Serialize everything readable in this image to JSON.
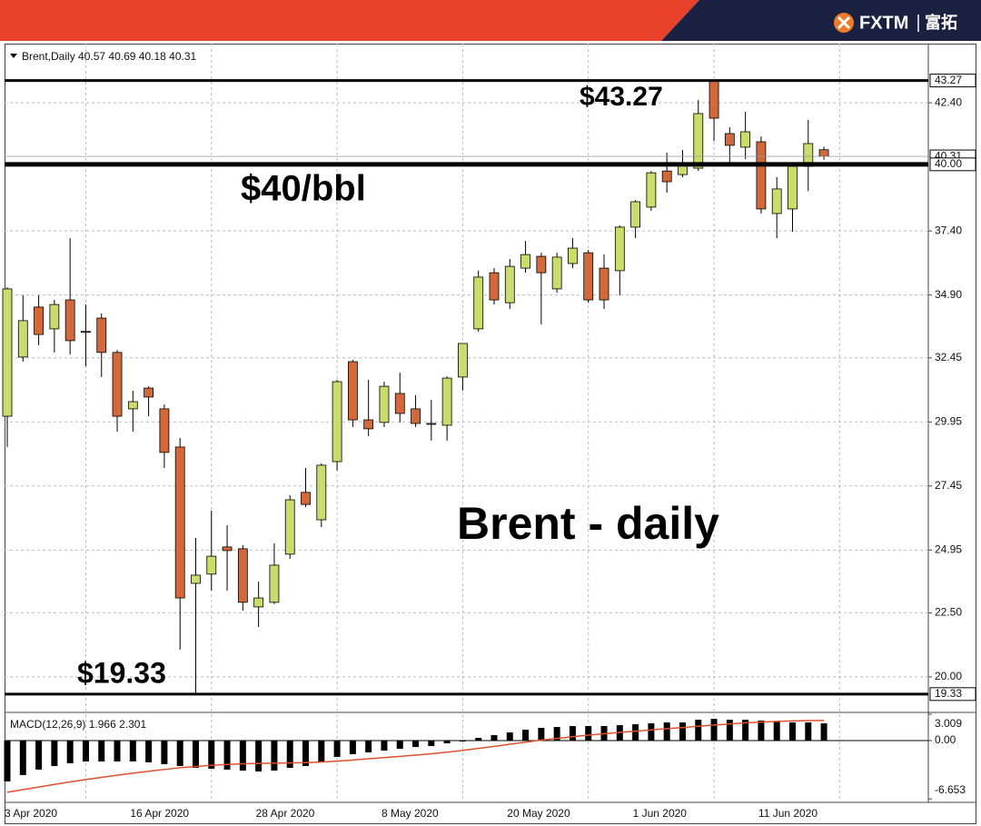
{
  "brand": {
    "name": "FXTM",
    "name_cn": "富拓"
  },
  "chart_data": {
    "type": "candlestick",
    "symbol": "Brent,Daily",
    "categories": [
      "3 Apr 2020",
      null,
      null,
      null,
      null,
      null,
      null,
      null,
      "16 Apr 2020",
      null,
      null,
      null,
      null,
      null,
      null,
      null,
      "28 Apr 2020",
      null,
      null,
      null,
      null,
      null,
      null,
      null,
      "8 May 2020",
      null,
      null,
      null,
      null,
      null,
      null,
      null,
      "20 May 2020",
      null,
      null,
      null,
      null,
      null,
      null,
      null,
      "1 Jun 2020",
      null,
      null,
      null,
      null,
      null,
      null,
      null,
      "11 Jun 2020",
      null,
      null,
      null,
      null
    ],
    "open": [
      30.17,
      32.48,
      34.43,
      33.58,
      34.71,
      33.48,
      34.0,
      32.66,
      30.46,
      31.27,
      30.46,
      28.97,
      23.65,
      24.01,
      25.07,
      25.0,
      22.73,
      22.91,
      24.79,
      27.2,
      26.13,
      28.4,
      32.3,
      30.03,
      29.93,
      31.06,
      30.46,
      29.86,
      29.82,
      31.7,
      33.58,
      35.77,
      34.6,
      35.95,
      36.41,
      35.14,
      36.13,
      36.55,
      35.95,
      35.85,
      37.55,
      38.33,
      39.74,
      39.6,
      39.85,
      43.27,
      41.2,
      40.67,
      40.88,
      38.08,
      38.26,
      39.92,
      40.57
    ],
    "high": [
      35.2,
      34.89,
      34.89,
      34.71,
      37.12,
      34.53,
      34.18,
      32.76,
      31.17,
      31.34,
      30.63,
      29.32,
      25.42,
      26.49,
      25.92,
      25.14,
      23.72,
      25.21,
      27.09,
      28.15,
      28.33,
      31.59,
      32.37,
      31.59,
      31.52,
      31.87,
      30.99,
      30.81,
      31.73,
      33.01,
      35.85,
      35.95,
      36.31,
      37.01,
      36.55,
      36.55,
      37.12,
      36.66,
      36.48,
      37.62,
      38.61,
      39.74,
      40.45,
      40.56,
      42.51,
      43.27,
      41.45,
      42.05,
      41.09,
      39.5,
      40.03,
      41.73,
      40.69
    ],
    "low": [
      28.97,
      32.3,
      32.94,
      32.66,
      32.58,
      32.12,
      31.7,
      29.57,
      29.57,
      30.17,
      28.15,
      21.06,
      19.33,
      23.37,
      23.37,
      22.59,
      21.95,
      22.84,
      24.61,
      26.63,
      25.85,
      28.05,
      29.75,
      29.39,
      29.75,
      29.93,
      29.75,
      29.22,
      29.22,
      31.17,
      33.47,
      34.53,
      34.36,
      35.77,
      33.75,
      34.99,
      35.95,
      34.6,
      34.36,
      34.89,
      37.12,
      38.18,
      38.89,
      39.5,
      39.74,
      40.91,
      39.96,
      40.2,
      38.08,
      37.12,
      37.37,
      38.96,
      40.18
    ],
    "close": [
      35.14,
      33.9,
      33.36,
      34.53,
      33.12,
      33.45,
      32.66,
      30.17,
      30.74,
      30.92,
      28.76,
      23.08,
      23.97,
      24.71,
      24.93,
      22.91,
      23.08,
      24.36,
      26.91,
      26.73,
      28.26,
      31.52,
      30.03,
      29.68,
      31.34,
      30.28,
      29.89,
      29.89,
      31.66,
      33.01,
      35.6,
      34.71,
      36.02,
      36.48,
      35.77,
      36.38,
      36.73,
      34.71,
      34.71,
      37.55,
      38.54,
      39.67,
      39.32,
      40.03,
      41.98,
      41.8,
      40.74,
      41.27,
      38.26,
      39.04,
      39.92,
      40.81,
      40.31
    ],
    "up_color": "#c9dc6c",
    "down_color": "#d3693a",
    "ylim": [
      18.65,
      44.71
    ],
    "yticks": [
      {
        "value": 20,
        "label": "20.00"
      },
      {
        "value": 22.5,
        "label": "22.50"
      },
      24.95,
      27.45,
      29.95,
      32.45,
      {
        "value": 34.9,
        "label": "34.90"
      },
      {
        "value": 37.4,
        "label": "37.40"
      },
      {
        "value": 42.4,
        "label": "42.40"
      }
    ],
    "grid": true,
    "levels": [
      43.27,
      {
        "value": 40,
        "label": "40.00"
      },
      19.33
    ],
    "annotations": [
      "$43.27",
      "$40/bbl",
      "Brent - daily",
      "$19.33"
    ],
    "macd": {
      "name": "MACD(12,26,9)",
      "histogram": [
        -4.66,
        -3.93,
        -3.31,
        -2.9,
        -2.59,
        -2.38,
        -2.38,
        -2.38,
        -2.38,
        -2.48,
        -2.69,
        -2.9,
        -3.11,
        -3.21,
        -3.31,
        -3.42,
        -3.52,
        -3.42,
        -3.11,
        -2.9,
        -2.48,
        -1.86,
        -1.55,
        -1.35,
        -1.14,
        -0.93,
        -0.73,
        -0.62,
        -0.31,
        -0.1,
        0.31,
        0.62,
        0.93,
        1.24,
        1.45,
        1.55,
        1.66,
        1.66,
        1.66,
        1.76,
        1.86,
        1.97,
        2.07,
        2.07,
        2.38,
        2.48,
        2.38,
        2.38,
        2.28,
        2.17,
        2.07,
        2.07,
        1.966
      ],
      "signal": [
        -5.9,
        -5.6,
        -5.3,
        -5.0,
        -4.72,
        -4.45,
        -4.2,
        -3.95,
        -3.72,
        -3.5,
        -3.3,
        -3.1,
        -2.95,
        -2.82,
        -2.72,
        -2.65,
        -2.6,
        -2.58,
        -2.56,
        -2.52,
        -2.45,
        -2.35,
        -2.22,
        -2.08,
        -1.94,
        -1.8,
        -1.66,
        -1.5,
        -1.32,
        -1.12,
        -0.9,
        -0.66,
        -0.42,
        -0.18,
        0.05,
        0.25,
        0.44,
        0.62,
        0.78,
        0.93,
        1.08,
        1.22,
        1.36,
        1.49,
        1.63,
        1.78,
        1.9,
        2.02,
        2.12,
        2.19,
        2.24,
        2.28,
        2.301
      ],
      "histogram_color": "#000000",
      "signal_color": "#e0502c",
      "ylim": [
        -6.95,
        3.009
      ],
      "yticks": [
        3.009,
        {
          "value": 0,
          "label": "0.00"
        },
        -6.653
      ]
    }
  }
}
